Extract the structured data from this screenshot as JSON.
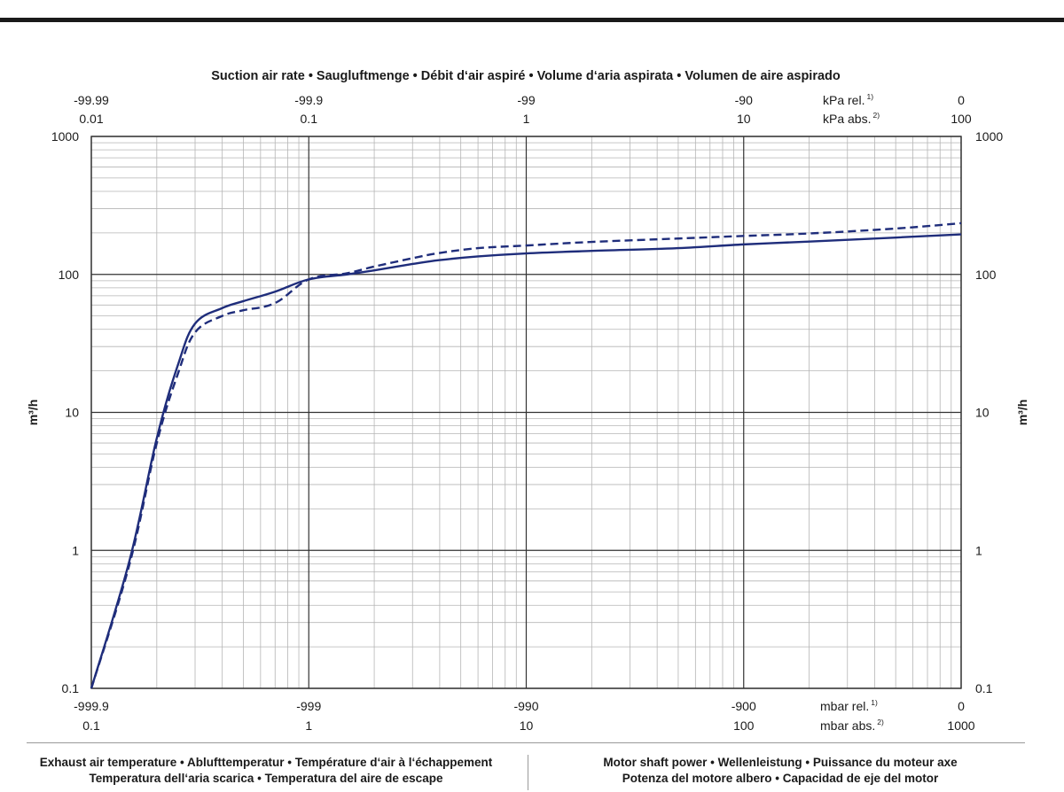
{
  "chart_data": {
    "type": "line",
    "title": "Suction air rate  •  Saugluftmenge  •  Débit d‘air aspiré  •  Volume d‘aria aspirata  •  Volumen de aire aspirado",
    "x_scale": "log",
    "y_scale": "log",
    "xlim": [
      0.1,
      1000
    ],
    "ylim": [
      0.1,
      1000
    ],
    "ylabel": "m³/h",
    "grid": true,
    "legend": "none",
    "colors": {
      "curve": "#1f2d7b",
      "grid_major": "#333333",
      "grid_minor": "#b5b5b5",
      "frame": "#333333"
    },
    "y_ticks": [
      0.1,
      1,
      10,
      100,
      1000
    ],
    "y_tick_labels": [
      "0.1",
      "1",
      "10",
      "100",
      "1000"
    ],
    "bottom_axis": {
      "ticks": [
        0.1,
        1,
        10,
        100,
        1000
      ],
      "rel_labels": [
        "-999.9",
        "-999",
        "-990",
        "-900",
        "0"
      ],
      "abs_labels": [
        "0.1",
        "1",
        "10",
        "100",
        "1000"
      ],
      "rel_unit": "mbar rel.",
      "rel_unit_sup": "1)",
      "abs_unit": "mbar abs.",
      "abs_unit_sup": "2)"
    },
    "top_axis": {
      "ticks": [
        0.1,
        1,
        10,
        100,
        1000
      ],
      "rel_labels": [
        "-99.99",
        "-99.9",
        "-99",
        "-90",
        "0"
      ],
      "abs_labels": [
        "0.01",
        "0.1",
        "1",
        "10",
        "100"
      ],
      "rel_unit": "kPa rel.",
      "rel_unit_sup": "1)",
      "abs_unit": "kPa abs.",
      "abs_unit_sup": "2)"
    },
    "series": [
      {
        "style": "solid",
        "x": [
          0.1,
          0.15,
          0.2,
          0.25,
          0.3,
          0.4,
          0.5,
          0.7,
          1,
          1.5,
          2,
          3,
          4,
          6,
          10,
          20,
          50,
          100,
          200,
          500,
          1000
        ],
        "y": [
          0.1,
          0.85,
          6.5,
          22,
          44,
          57,
          64,
          75,
          92,
          100,
          107,
          119,
          127,
          135,
          142,
          148,
          155,
          165,
          173,
          185,
          195
        ]
      },
      {
        "style": "dashed",
        "x": [
          0.1,
          0.15,
          0.2,
          0.25,
          0.3,
          0.4,
          0.5,
          0.7,
          1,
          1.5,
          2,
          3,
          4,
          6,
          10,
          20,
          50,
          100,
          200,
          500,
          1000
        ],
        "y": [
          0.1,
          0.8,
          6,
          19,
          38,
          50,
          55,
          62,
          92,
          102,
          114,
          131,
          143,
          155,
          162,
          172,
          182,
          190,
          198,
          215,
          235
        ]
      }
    ]
  },
  "footer": {
    "left_line1": "Exhaust air temperature  •  Ablufttemperatur  •  Température d‘air à l‘échappement",
    "left_line2": "Temperatura dell‘aria scarica  •  Temperatura del aire de escape",
    "right_line1": "Motor shaft power  •  Wellenleistung  •  Puissance du moteur axe",
    "right_line2": "Potenza del motore albero  •  Capacidad de eje del motor"
  }
}
